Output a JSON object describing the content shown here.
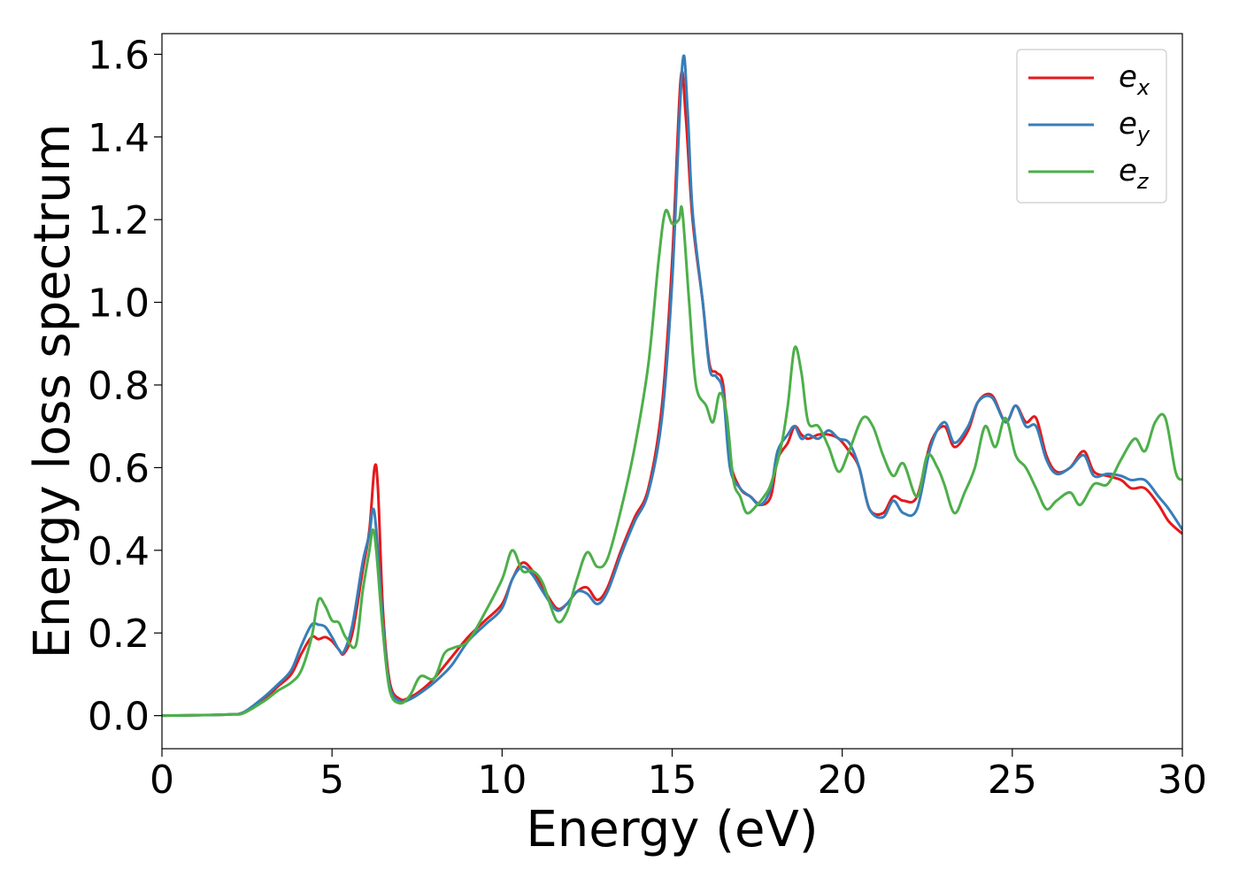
{
  "chart_data": {
    "type": "line",
    "xlabel": "Energy (eV)",
    "ylabel": "Energy loss spectrum",
    "xlim": [
      0,
      30
    ],
    "ylim": [
      -0.08,
      1.65
    ],
    "xticks": [
      0,
      5,
      10,
      15,
      20,
      25,
      30
    ],
    "xtick_labels": [
      "0",
      "5",
      "10",
      "15",
      "20",
      "25",
      "30"
    ],
    "yticks": [
      0.0,
      0.2,
      0.4,
      0.6,
      0.8,
      1.0,
      1.2,
      1.4,
      1.6
    ],
    "ytick_labels": [
      "0.0",
      "0.2",
      "0.4",
      "0.6",
      "0.8",
      "1.0",
      "1.2",
      "1.4",
      "1.6"
    ],
    "grid": false,
    "legend_position": "top-right",
    "series": [
      {
        "name_base": "e",
        "name_sub": "x",
        "color": "#e41a1c",
        "points": [
          [
            0,
            0
          ],
          [
            1,
            0.001
          ],
          [
            2,
            0.003
          ],
          [
            2.4,
            0.008
          ],
          [
            3,
            0.04
          ],
          [
            3.4,
            0.07
          ],
          [
            3.8,
            0.1
          ],
          [
            4.1,
            0.15
          ],
          [
            4.4,
            0.19
          ],
          [
            4.6,
            0.185
          ],
          [
            4.8,
            0.19
          ],
          [
            5.0,
            0.18
          ],
          [
            5.2,
            0.16
          ],
          [
            5.35,
            0.15
          ],
          [
            5.6,
            0.2
          ],
          [
            5.9,
            0.35
          ],
          [
            6.1,
            0.45
          ],
          [
            6.25,
            0.6
          ],
          [
            6.35,
            0.55
          ],
          [
            6.5,
            0.25
          ],
          [
            6.7,
            0.08
          ],
          [
            7.0,
            0.04
          ],
          [
            7.3,
            0.045
          ],
          [
            7.6,
            0.06
          ],
          [
            8.0,
            0.09
          ],
          [
            8.5,
            0.14
          ],
          [
            9.0,
            0.19
          ],
          [
            9.5,
            0.23
          ],
          [
            10.0,
            0.27
          ],
          [
            10.3,
            0.33
          ],
          [
            10.6,
            0.37
          ],
          [
            10.9,
            0.35
          ],
          [
            11.2,
            0.31
          ],
          [
            11.6,
            0.26
          ],
          [
            11.9,
            0.27
          ],
          [
            12.2,
            0.3
          ],
          [
            12.5,
            0.31
          ],
          [
            12.8,
            0.28
          ],
          [
            13.1,
            0.31
          ],
          [
            13.5,
            0.4
          ],
          [
            13.9,
            0.48
          ],
          [
            14.3,
            0.55
          ],
          [
            14.7,
            0.75
          ],
          [
            15.0,
            1.1
          ],
          [
            15.25,
            1.54
          ],
          [
            15.4,
            1.45
          ],
          [
            15.6,
            1.2
          ],
          [
            15.9,
            1.0
          ],
          [
            16.1,
            0.85
          ],
          [
            16.3,
            0.83
          ],
          [
            16.5,
            0.8
          ],
          [
            16.7,
            0.62
          ],
          [
            17.0,
            0.55
          ],
          [
            17.3,
            0.53
          ],
          [
            17.6,
            0.51
          ],
          [
            17.9,
            0.53
          ],
          [
            18.1,
            0.62
          ],
          [
            18.4,
            0.66
          ],
          [
            18.6,
            0.7
          ],
          [
            18.8,
            0.68
          ],
          [
            19.0,
            0.67
          ],
          [
            19.3,
            0.68
          ],
          [
            19.6,
            0.68
          ],
          [
            19.9,
            0.67
          ],
          [
            20.2,
            0.64
          ],
          [
            20.5,
            0.6
          ],
          [
            20.8,
            0.5
          ],
          [
            21.2,
            0.49
          ],
          [
            21.5,
            0.53
          ],
          [
            21.8,
            0.52
          ],
          [
            22.2,
            0.53
          ],
          [
            22.6,
            0.66
          ],
          [
            23.0,
            0.7
          ],
          [
            23.3,
            0.65
          ],
          [
            23.7,
            0.69
          ],
          [
            24.0,
            0.76
          ],
          [
            24.4,
            0.775
          ],
          [
            24.8,
            0.71
          ],
          [
            25.1,
            0.75
          ],
          [
            25.4,
            0.71
          ],
          [
            25.7,
            0.72
          ],
          [
            26.0,
            0.63
          ],
          [
            26.3,
            0.59
          ],
          [
            26.7,
            0.6
          ],
          [
            27.1,
            0.64
          ],
          [
            27.4,
            0.59
          ],
          [
            27.8,
            0.58
          ],
          [
            28.2,
            0.57
          ],
          [
            28.5,
            0.55
          ],
          [
            28.9,
            0.55
          ],
          [
            29.3,
            0.51
          ],
          [
            29.6,
            0.47
          ],
          [
            30.0,
            0.44
          ]
        ]
      },
      {
        "name_base": "e",
        "name_sub": "y",
        "color": "#377eb8",
        "points": [
          [
            0,
            0
          ],
          [
            1,
            0.001
          ],
          [
            2,
            0.003
          ],
          [
            2.4,
            0.008
          ],
          [
            3,
            0.045
          ],
          [
            3.4,
            0.075
          ],
          [
            3.8,
            0.11
          ],
          [
            4.1,
            0.17
          ],
          [
            4.4,
            0.22
          ],
          [
            4.6,
            0.22
          ],
          [
            4.8,
            0.215
          ],
          [
            5.0,
            0.19
          ],
          [
            5.2,
            0.16
          ],
          [
            5.35,
            0.155
          ],
          [
            5.6,
            0.22
          ],
          [
            5.9,
            0.37
          ],
          [
            6.1,
            0.44
          ],
          [
            6.2,
            0.5
          ],
          [
            6.3,
            0.45
          ],
          [
            6.5,
            0.22
          ],
          [
            6.7,
            0.07
          ],
          [
            7.0,
            0.035
          ],
          [
            7.3,
            0.04
          ],
          [
            7.6,
            0.055
          ],
          [
            8.0,
            0.08
          ],
          [
            8.5,
            0.12
          ],
          [
            9.0,
            0.18
          ],
          [
            9.5,
            0.22
          ],
          [
            10.0,
            0.26
          ],
          [
            10.3,
            0.33
          ],
          [
            10.6,
            0.36
          ],
          [
            10.9,
            0.34
          ],
          [
            11.2,
            0.3
          ],
          [
            11.6,
            0.255
          ],
          [
            11.9,
            0.27
          ],
          [
            12.2,
            0.3
          ],
          [
            12.5,
            0.295
          ],
          [
            12.8,
            0.27
          ],
          [
            13.1,
            0.3
          ],
          [
            13.5,
            0.39
          ],
          [
            13.9,
            0.47
          ],
          [
            14.3,
            0.54
          ],
          [
            14.7,
            0.72
          ],
          [
            15.0,
            1.05
          ],
          [
            15.3,
            1.575
          ],
          [
            15.45,
            1.47
          ],
          [
            15.6,
            1.22
          ],
          [
            15.9,
            1.0
          ],
          [
            16.1,
            0.84
          ],
          [
            16.3,
            0.82
          ],
          [
            16.5,
            0.78
          ],
          [
            16.7,
            0.6
          ],
          [
            17.0,
            0.55
          ],
          [
            17.3,
            0.53
          ],
          [
            17.6,
            0.51
          ],
          [
            17.9,
            0.55
          ],
          [
            18.1,
            0.64
          ],
          [
            18.4,
            0.68
          ],
          [
            18.6,
            0.7
          ],
          [
            18.8,
            0.67
          ],
          [
            19.0,
            0.68
          ],
          [
            19.3,
            0.67
          ],
          [
            19.6,
            0.69
          ],
          [
            19.9,
            0.67
          ],
          [
            20.2,
            0.66
          ],
          [
            20.5,
            0.6
          ],
          [
            20.8,
            0.5
          ],
          [
            21.2,
            0.48
          ],
          [
            21.5,
            0.52
          ],
          [
            21.8,
            0.49
          ],
          [
            22.2,
            0.5
          ],
          [
            22.6,
            0.65
          ],
          [
            23.0,
            0.71
          ],
          [
            23.3,
            0.66
          ],
          [
            23.7,
            0.7
          ],
          [
            24.0,
            0.76
          ],
          [
            24.4,
            0.77
          ],
          [
            24.8,
            0.71
          ],
          [
            25.1,
            0.75
          ],
          [
            25.4,
            0.7
          ],
          [
            25.7,
            0.7
          ],
          [
            26.0,
            0.62
          ],
          [
            26.3,
            0.585
          ],
          [
            26.7,
            0.6
          ],
          [
            27.1,
            0.63
          ],
          [
            27.4,
            0.58
          ],
          [
            27.8,
            0.585
          ],
          [
            28.2,
            0.58
          ],
          [
            28.5,
            0.57
          ],
          [
            28.9,
            0.57
          ],
          [
            29.3,
            0.53
          ],
          [
            29.6,
            0.5
          ],
          [
            30.0,
            0.45
          ]
        ]
      },
      {
        "name_base": "e",
        "name_sub": "z",
        "color": "#4daf4a",
        "points": [
          [
            0,
            0
          ],
          [
            1,
            0.001
          ],
          [
            2,
            0.003
          ],
          [
            2.4,
            0.006
          ],
          [
            3,
            0.035
          ],
          [
            3.4,
            0.06
          ],
          [
            3.8,
            0.08
          ],
          [
            4.1,
            0.11
          ],
          [
            4.4,
            0.19
          ],
          [
            4.6,
            0.28
          ],
          [
            4.8,
            0.265
          ],
          [
            5.0,
            0.23
          ],
          [
            5.2,
            0.225
          ],
          [
            5.4,
            0.19
          ],
          [
            5.7,
            0.17
          ],
          [
            5.9,
            0.3
          ],
          [
            6.1,
            0.4
          ],
          [
            6.2,
            0.45
          ],
          [
            6.3,
            0.4
          ],
          [
            6.5,
            0.2
          ],
          [
            6.7,
            0.06
          ],
          [
            7.0,
            0.03
          ],
          [
            7.3,
            0.05
          ],
          [
            7.6,
            0.095
          ],
          [
            8.0,
            0.09
          ],
          [
            8.3,
            0.15
          ],
          [
            8.6,
            0.165
          ],
          [
            9.0,
            0.18
          ],
          [
            9.5,
            0.25
          ],
          [
            10.0,
            0.33
          ],
          [
            10.3,
            0.4
          ],
          [
            10.6,
            0.35
          ],
          [
            10.9,
            0.35
          ],
          [
            11.2,
            0.32
          ],
          [
            11.6,
            0.23
          ],
          [
            11.9,
            0.25
          ],
          [
            12.2,
            0.33
          ],
          [
            12.5,
            0.395
          ],
          [
            12.8,
            0.36
          ],
          [
            13.1,
            0.38
          ],
          [
            13.5,
            0.5
          ],
          [
            13.9,
            0.65
          ],
          [
            14.3,
            0.85
          ],
          [
            14.6,
            1.1
          ],
          [
            14.8,
            1.22
          ],
          [
            15.0,
            1.19
          ],
          [
            15.2,
            1.2
          ],
          [
            15.3,
            1.22
          ],
          [
            15.5,
            1.0
          ],
          [
            15.7,
            0.8
          ],
          [
            16.0,
            0.75
          ],
          [
            16.2,
            0.71
          ],
          [
            16.4,
            0.78
          ],
          [
            16.6,
            0.73
          ],
          [
            16.8,
            0.57
          ],
          [
            17.0,
            0.53
          ],
          [
            17.2,
            0.49
          ],
          [
            17.5,
            0.51
          ],
          [
            17.7,
            0.53
          ],
          [
            17.9,
            0.56
          ],
          [
            18.2,
            0.65
          ],
          [
            18.4,
            0.75
          ],
          [
            18.6,
            0.89
          ],
          [
            18.8,
            0.83
          ],
          [
            19.0,
            0.71
          ],
          [
            19.3,
            0.7
          ],
          [
            19.6,
            0.65
          ],
          [
            19.9,
            0.59
          ],
          [
            20.2,
            0.64
          ],
          [
            20.6,
            0.72
          ],
          [
            20.9,
            0.7
          ],
          [
            21.2,
            0.63
          ],
          [
            21.5,
            0.58
          ],
          [
            21.8,
            0.61
          ],
          [
            22.2,
            0.53
          ],
          [
            22.5,
            0.63
          ],
          [
            22.8,
            0.6
          ],
          [
            23.0,
            0.56
          ],
          [
            23.3,
            0.49
          ],
          [
            23.6,
            0.54
          ],
          [
            23.9,
            0.6
          ],
          [
            24.2,
            0.7
          ],
          [
            24.5,
            0.65
          ],
          [
            24.8,
            0.72
          ],
          [
            25.1,
            0.63
          ],
          [
            25.4,
            0.6
          ],
          [
            25.7,
            0.55
          ],
          [
            26.0,
            0.5
          ],
          [
            26.3,
            0.52
          ],
          [
            26.7,
            0.54
          ],
          [
            27.0,
            0.51
          ],
          [
            27.4,
            0.56
          ],
          [
            27.8,
            0.56
          ],
          [
            28.2,
            0.62
          ],
          [
            28.6,
            0.67
          ],
          [
            28.9,
            0.64
          ],
          [
            29.2,
            0.71
          ],
          [
            29.5,
            0.72
          ],
          [
            29.8,
            0.59
          ],
          [
            30.0,
            0.57
          ]
        ]
      }
    ]
  }
}
